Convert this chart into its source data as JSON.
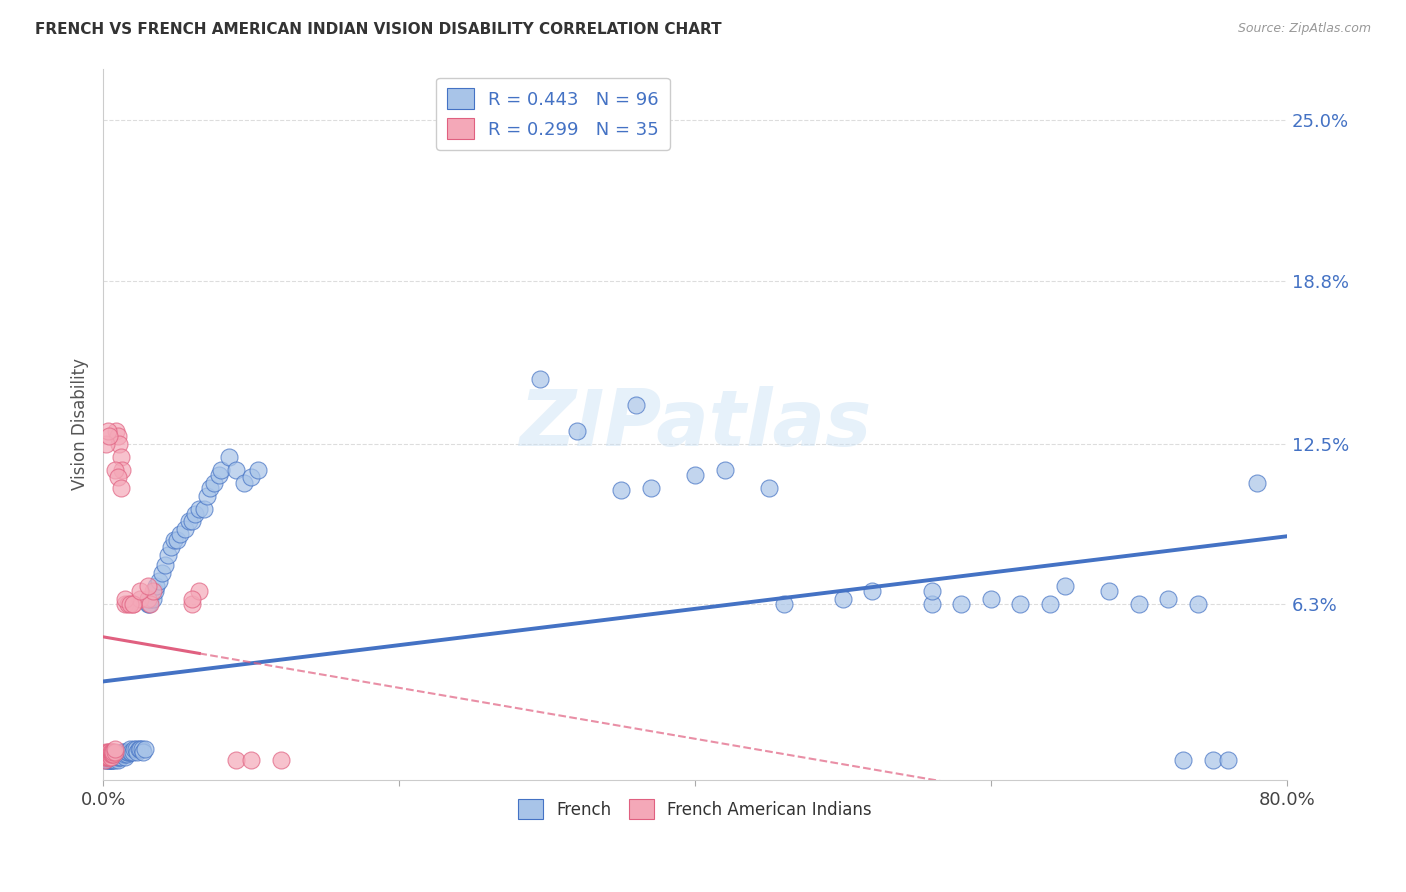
{
  "title": "FRENCH VS FRENCH AMERICAN INDIAN VISION DISABILITY CORRELATION CHART",
  "source": "Source: ZipAtlas.com",
  "ylabel": "Vision Disability",
  "ytick_labels": [
    "25.0%",
    "18.8%",
    "12.5%",
    "6.3%"
  ],
  "ytick_values": [
    0.25,
    0.188,
    0.125,
    0.063
  ],
  "xlim": [
    0.0,
    0.8
  ],
  "ylim": [
    -0.005,
    0.27
  ],
  "legend_blue": {
    "R": "0.443",
    "N": "96",
    "label": "French"
  },
  "legend_pink": {
    "R": "0.299",
    "N": "35",
    "label": "French American Indians"
  },
  "blue_scatter_x": [
    0.001,
    0.001,
    0.002,
    0.002,
    0.002,
    0.003,
    0.003,
    0.003,
    0.003,
    0.004,
    0.004,
    0.004,
    0.004,
    0.005,
    0.005,
    0.005,
    0.005,
    0.005,
    0.006,
    0.006,
    0.006,
    0.006,
    0.007,
    0.007,
    0.007,
    0.007,
    0.008,
    0.008,
    0.008,
    0.009,
    0.009,
    0.009,
    0.01,
    0.01,
    0.01,
    0.011,
    0.011,
    0.012,
    0.012,
    0.013,
    0.013,
    0.014,
    0.014,
    0.015,
    0.015,
    0.016,
    0.016,
    0.017,
    0.018,
    0.018,
    0.019,
    0.02,
    0.021,
    0.022,
    0.023,
    0.024,
    0.025,
    0.026,
    0.027,
    0.028,
    0.03,
    0.031,
    0.032,
    0.034,
    0.035,
    0.036,
    0.038,
    0.04,
    0.042,
    0.044,
    0.046,
    0.048,
    0.05,
    0.052,
    0.055,
    0.058,
    0.06,
    0.062,
    0.065,
    0.068,
    0.07,
    0.072,
    0.075,
    0.078,
    0.08,
    0.085,
    0.09,
    0.095,
    0.1,
    0.105,
    0.35,
    0.37,
    0.46,
    0.56,
    0.64,
    0.75
  ],
  "blue_scatter_y": [
    0.003,
    0.004,
    0.003,
    0.005,
    0.004,
    0.003,
    0.004,
    0.005,
    0.004,
    0.003,
    0.004,
    0.005,
    0.003,
    0.003,
    0.004,
    0.005,
    0.004,
    0.003,
    0.003,
    0.004,
    0.005,
    0.004,
    0.003,
    0.004,
    0.005,
    0.004,
    0.003,
    0.004,
    0.005,
    0.004,
    0.005,
    0.004,
    0.003,
    0.004,
    0.005,
    0.004,
    0.005,
    0.004,
    0.005,
    0.005,
    0.006,
    0.005,
    0.006,
    0.004,
    0.005,
    0.005,
    0.006,
    0.006,
    0.006,
    0.007,
    0.006,
    0.006,
    0.007,
    0.007,
    0.006,
    0.007,
    0.007,
    0.007,
    0.006,
    0.007,
    0.063,
    0.063,
    0.065,
    0.065,
    0.068,
    0.07,
    0.072,
    0.075,
    0.078,
    0.082,
    0.085,
    0.088,
    0.088,
    0.09,
    0.092,
    0.095,
    0.095,
    0.098,
    0.1,
    0.1,
    0.105,
    0.108,
    0.11,
    0.113,
    0.115,
    0.12,
    0.115,
    0.11,
    0.112,
    0.115,
    0.107,
    0.108,
    0.063,
    0.063,
    0.063,
    0.003
  ],
  "blue_scatter_x2": [
    0.295,
    0.32,
    0.36,
    0.4,
    0.42,
    0.45,
    0.5,
    0.52,
    0.56,
    0.58,
    0.6,
    0.62,
    0.65,
    0.68,
    0.7,
    0.72,
    0.73,
    0.74,
    0.76,
    0.78
  ],
  "blue_scatter_y2": [
    0.15,
    0.13,
    0.14,
    0.113,
    0.115,
    0.108,
    0.065,
    0.068,
    0.068,
    0.063,
    0.065,
    0.063,
    0.07,
    0.068,
    0.063,
    0.065,
    0.003,
    0.063,
    0.003,
    0.11
  ],
  "pink_scatter_x": [
    0.001,
    0.001,
    0.001,
    0.002,
    0.002,
    0.002,
    0.003,
    0.003,
    0.003,
    0.004,
    0.004,
    0.004,
    0.005,
    0.005,
    0.005,
    0.006,
    0.006,
    0.007,
    0.007,
    0.008,
    0.008,
    0.009,
    0.01,
    0.011,
    0.012,
    0.013,
    0.015,
    0.017,
    0.02,
    0.025,
    0.03,
    0.032,
    0.034,
    0.06,
    0.065
  ],
  "pink_scatter_y": [
    0.003,
    0.004,
    0.005,
    0.004,
    0.005,
    0.006,
    0.004,
    0.005,
    0.006,
    0.004,
    0.005,
    0.006,
    0.004,
    0.005,
    0.006,
    0.005,
    0.006,
    0.005,
    0.006,
    0.006,
    0.007,
    0.13,
    0.128,
    0.125,
    0.12,
    0.115,
    0.063,
    0.063,
    0.063,
    0.065,
    0.065,
    0.063,
    0.068,
    0.063,
    0.068
  ],
  "pink_scatter_extra_x": [
    0.002,
    0.003,
    0.004,
    0.008,
    0.01,
    0.012,
    0.015,
    0.018,
    0.02,
    0.025,
    0.03,
    0.06,
    0.09,
    0.1,
    0.12
  ],
  "pink_scatter_extra_y": [
    0.125,
    0.13,
    0.128,
    0.115,
    0.112,
    0.108,
    0.065,
    0.063,
    0.063,
    0.068,
    0.07,
    0.065,
    0.003,
    0.003,
    0.003
  ],
  "blue_line_color": "#4472c4",
  "pink_line_color": "#e06080",
  "blue_scatter_color": "#a8c4e8",
  "pink_scatter_color": "#f4a8b8",
  "watermark": "ZIPatlas",
  "background_color": "#ffffff",
  "grid_color": "#dddddd"
}
